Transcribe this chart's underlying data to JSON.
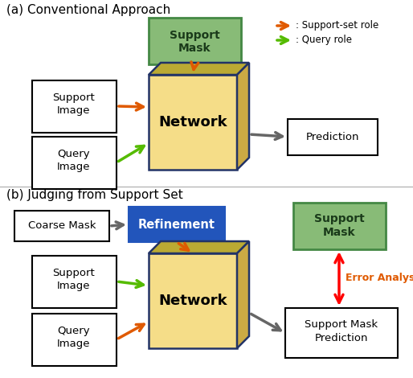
{
  "title_a": "(a) Conventional Approach",
  "title_b": "(b) Judging from Support Set",
  "orange_color": "#E05A00",
  "green_color": "#55BB00",
  "blue_color": "#2255CC",
  "red_color": "#FF0000",
  "gray_color": "#666666",
  "support_mask_fill": "#88BB77",
  "support_mask_edge": "#448844",
  "network_face_fill": "#F5DD88",
  "network_top_fill": "#BBAA33",
  "network_side_fill": "#CCAA44",
  "network_edge": "#223366",
  "refinement_fill": "#2255BB",
  "legend_orange": ": Support-set role",
  "legend_green": ": Query role",
  "error_text": "Error Analysis"
}
